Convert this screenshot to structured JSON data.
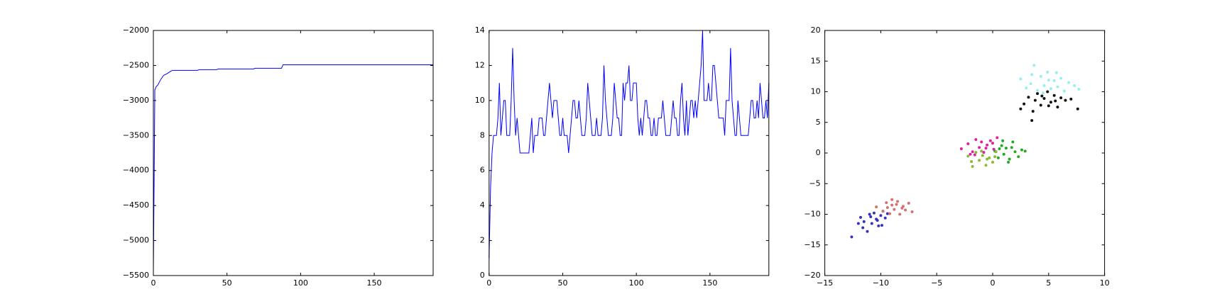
{
  "chart_data": [
    {
      "type": "line",
      "color": "#0000ff",
      "x": [
        0,
        1,
        2,
        3,
        5,
        7,
        9,
        12,
        13,
        30,
        31,
        43,
        44,
        68,
        69,
        87,
        88,
        190
      ],
      "values": [
        -5450,
        -2850,
        -2800,
        -2780,
        -2700,
        -2640,
        -2620,
        -2580,
        -2570,
        -2570,
        -2560,
        -2560,
        -2550,
        -2550,
        -2540,
        -2540,
        -2490,
        -2490
      ],
      "xlim": [
        0,
        190
      ],
      "xticks": [
        0,
        50,
        100,
        150
      ],
      "ylim": [
        -5500,
        -2000
      ],
      "yticks": [
        {
          "value": -5500,
          "label": "−5500"
        },
        {
          "value": -5000,
          "label": "−5000"
        },
        {
          "value": -4500,
          "label": "−4500"
        },
        {
          "value": -4000,
          "label": "−4000"
        },
        {
          "value": -3500,
          "label": "−3500"
        },
        {
          "value": -3000,
          "label": "−3000"
        },
        {
          "value": -2500,
          "label": "−2500"
        },
        {
          "value": -2000,
          "label": "−2000"
        }
      ]
    },
    {
      "type": "line",
      "color": "#0000ff",
      "x": [
        0,
        1,
        2,
        3,
        4,
        5,
        6,
        7,
        8,
        9,
        10,
        11,
        12,
        13,
        14,
        15,
        16,
        17,
        18,
        19,
        20,
        21,
        22,
        23,
        24,
        25,
        26,
        27,
        28,
        29,
        30,
        31,
        32,
        33,
        34,
        35,
        36,
        37,
        38,
        39,
        40,
        41,
        42,
        43,
        44,
        45,
        46,
        47,
        48,
        49,
        50,
        51,
        52,
        53,
        54,
        55,
        56,
        57,
        58,
        59,
        60,
        61,
        62,
        63,
        64,
        65,
        66,
        67,
        68,
        69,
        70,
        71,
        72,
        73,
        74,
        75,
        76,
        77,
        78,
        79,
        80,
        81,
        82,
        83,
        84,
        85,
        86,
        87,
        88,
        89,
        90,
        91,
        92,
        93,
        94,
        95,
        96,
        97,
        98,
        99,
        100,
        101,
        102,
        103,
        104,
        105,
        106,
        107,
        108,
        109,
        110,
        111,
        112,
        113,
        114,
        115,
        116,
        117,
        118,
        119,
        120,
        121,
        122,
        123,
        124,
        125,
        126,
        127,
        128,
        129,
        130,
        131,
        132,
        133,
        134,
        135,
        136,
        137,
        138,
        139,
        140,
        141,
        142,
        143,
        144,
        145,
        146,
        147,
        148,
        149,
        150,
        151,
        152,
        153,
        154,
        155,
        156,
        157,
        158,
        159,
        160,
        161,
        162,
        163,
        164,
        165,
        166,
        167,
        168,
        169,
        170,
        171,
        172,
        173,
        174,
        175,
        176,
        177,
        178,
        179,
        180,
        181,
        182,
        183,
        184,
        185,
        186,
        187,
        188,
        189,
        190
      ],
      "values": [
        1,
        5,
        7,
        8,
        8,
        8,
        9,
        11,
        8,
        9,
        10,
        10,
        8,
        8,
        8,
        10,
        13,
        10,
        8,
        9,
        8,
        7,
        7,
        7,
        7,
        7,
        7,
        7,
        8,
        9,
        7,
        8,
        8,
        8,
        9,
        9,
        9,
        8,
        8,
        9,
        10,
        11,
        10,
        9,
        10,
        10,
        10,
        9,
        8,
        8,
        9,
        8,
        8,
        8,
        7,
        8,
        9,
        10,
        10,
        9,
        9,
        10,
        9,
        8,
        8,
        8,
        9,
        11,
        10,
        9,
        8,
        8,
        8,
        9,
        8,
        8,
        8,
        9,
        12,
        10,
        9,
        8,
        8,
        8,
        9,
        11,
        10,
        9,
        9,
        8,
        8,
        11,
        10,
        11,
        11,
        12,
        10,
        10,
        11,
        11,
        11,
        9,
        8,
        9,
        8,
        9,
        10,
        10,
        9,
        9,
        8,
        8,
        9,
        8,
        8,
        9,
        9,
        9,
        10,
        9,
        8,
        8,
        8,
        8,
        9,
        10,
        9,
        9,
        8,
        8,
        10,
        11,
        9,
        8,
        10,
        8,
        9,
        10,
        10,
        9,
        10,
        9,
        10,
        11,
        12,
        14,
        10,
        10,
        10,
        11,
        10,
        10,
        12,
        12,
        11,
        10,
        9,
        9,
        9,
        9,
        8,
        10,
        10,
        10,
        13,
        10,
        9,
        8,
        8,
        10,
        9,
        8,
        8,
        8,
        8,
        8,
        8,
        9,
        10,
        10,
        9,
        9,
        10,
        9,
        11,
        10,
        9,
        9,
        10,
        9,
        11
      ],
      "xlim": [
        0,
        190
      ],
      "xticks": [
        0,
        50,
        100,
        150
      ],
      "ylim": [
        0,
        14
      ],
      "yticks": [
        0,
        2,
        4,
        6,
        8,
        10,
        12,
        14
      ]
    },
    {
      "type": "scatter",
      "xlim": [
        -15,
        10
      ],
      "xticks": [
        {
          "value": -15,
          "label": "−15"
        },
        {
          "value": -10,
          "label": "−10"
        },
        {
          "value": -5,
          "label": "−5"
        },
        0,
        5,
        10
      ],
      "ylim": [
        -20,
        20
      ],
      "yticks": [
        {
          "value": -20,
          "label": "−20"
        },
        {
          "value": -15,
          "label": "−15"
        },
        {
          "value": -10,
          "label": "−10"
        },
        {
          "value": -5,
          "label": "−5"
        },
        0,
        5,
        10,
        15,
        20
      ],
      "series": [
        {
          "color": "#3333bb",
          "x": [
            -12.6,
            -11.8,
            -11.5,
            -11.2,
            -11.0,
            -10.8,
            -10.6,
            -10.4,
            -10.2,
            -10.0,
            -9.8,
            -9.6,
            -9.4,
            -11.6,
            -10.9,
            -10.3,
            -12.0,
            -9.9
          ],
          "values": [
            -13.7,
            -10.5,
            -11.2,
            -12.8,
            -10.0,
            -11.5,
            -9.8,
            -10.8,
            -11.9,
            -10.2,
            -9.5,
            -10.6,
            -9.9,
            -12.2,
            -10.4,
            -11.0,
            -11.5,
            -11.8
          ]
        },
        {
          "color": "#d87070",
          "x": [
            -10.4,
            -9.8,
            -9.5,
            -9.2,
            -9.0,
            -8.8,
            -8.6,
            -8.3,
            -8.0,
            -7.8,
            -7.5,
            -7.2,
            -9.4,
            -8.5,
            -8.1,
            -9.0
          ],
          "values": [
            -8.8,
            -9.5,
            -8.1,
            -9.9,
            -7.6,
            -9.2,
            -8.4,
            -10.0,
            -8.7,
            -9.3,
            -8.2,
            -9.6,
            -8.9,
            -7.9,
            -9.0,
            -8.5
          ]
        },
        {
          "color": "#e020a0",
          "x": [
            -2.8,
            -2.2,
            -1.8,
            -1.5,
            -1.2,
            -1.0,
            -0.8,
            -0.5,
            -0.2,
            0.1,
            0.4,
            -1.6,
            -0.6,
            0.0,
            -2.0
          ],
          "values": [
            0.7,
            1.5,
            0.2,
            2.2,
            0.9,
            1.8,
            0.1,
            1.3,
            2.0,
            0.6,
            2.5,
            -0.3,
            0.8,
            1.6,
            -0.2
          ]
        },
        {
          "color": "#22aa22",
          "x": [
            0.2,
            0.5,
            0.8,
            1.0,
            1.2,
            1.5,
            1.8,
            2.0,
            2.3,
            2.6,
            1.4,
            0.9,
            1.7,
            2.9,
            0.6
          ],
          "values": [
            0.3,
            -0.8,
            1.2,
            -0.2,
            0.8,
            -1.0,
            1.8,
            0.2,
            -0.6,
            0.5,
            -1.5,
            2.0,
            0.9,
            0.3,
            0.7
          ]
        },
        {
          "color": "#88bb33",
          "x": [
            -2.2,
            -1.8,
            -1.5,
            -1.2,
            -0.9,
            -0.6,
            -0.3,
            0.0,
            0.3,
            -1.0,
            -0.5,
            -1.9,
            0.2
          ],
          "values": [
            -0.5,
            -2.2,
            0.1,
            -1.2,
            -0.4,
            -2.0,
            -0.8,
            -1.5,
            0.2,
            0.3,
            -1.0,
            -1.4,
            -0.6
          ]
        },
        {
          "color": "#111111",
          "x": [
            2.5,
            2.8,
            3.2,
            3.5,
            3.8,
            4.0,
            4.3,
            4.6,
            4.9,
            5.2,
            5.5,
            5.8,
            6.1,
            6.5,
            7.0,
            7.6,
            3.6,
            4.4,
            5.0,
            5.6
          ],
          "values": [
            7.2,
            8.0,
            9.1,
            5.3,
            8.6,
            9.7,
            7.8,
            8.9,
            10.0,
            8.3,
            9.4,
            7.5,
            9.0,
            8.6,
            8.8,
            7.2,
            6.8,
            9.3,
            7.7,
            8.5
          ]
        },
        {
          "color": "#99eeee",
          "x": [
            2.5,
            3.0,
            3.4,
            3.7,
            4.0,
            4.3,
            4.6,
            4.9,
            5.2,
            5.5,
            5.8,
            6.1,
            6.4,
            6.8,
            7.3,
            7.7,
            3.5,
            4.5,
            5.0,
            5.7
          ],
          "values": [
            12.1,
            10.6,
            11.3,
            14.3,
            10.2,
            12.5,
            11.0,
            13.2,
            10.5,
            11.8,
            10.8,
            12.2,
            10.1,
            11.5,
            11.0,
            10.4,
            12.8,
            9.8,
            11.9,
            13.1
          ]
        }
      ]
    }
  ]
}
